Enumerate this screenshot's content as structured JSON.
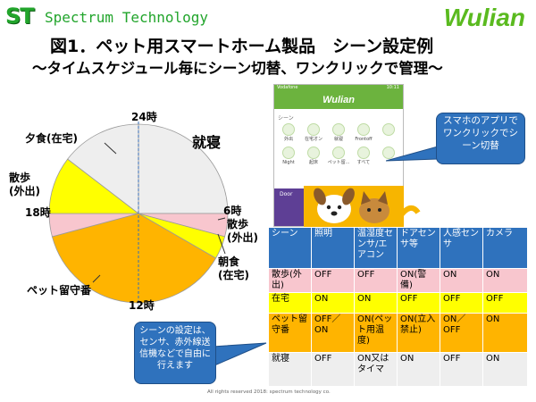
{
  "header": {
    "logo_left": "ST",
    "logo_left_text": "Spectrum Technology",
    "logo_right": "Wulian"
  },
  "title": {
    "line1": "図1．ペット用スマートホーム製品　シーン設定例",
    "line2": "～タイムスケジュール毎にシーン切替、ワンクリックで管理～"
  },
  "pie": {
    "labels": {
      "top": "24時",
      "right": "6時",
      "bottom": "12時",
      "left": "18時"
    },
    "segments": [
      {
        "name": "就寝",
        "lines": [
          "就寝"
        ],
        "start_hour": 0,
        "end_hour": 6,
        "color": "#eeeeee"
      },
      {
        "name": "散歩(外出)",
        "lines": [
          "散歩",
          "(外出)"
        ],
        "start_hour": 6,
        "end_hour": 7,
        "color": "#f8c6ce"
      },
      {
        "name": "朝食(在宅)",
        "lines": [
          "朝食",
          "(在宅)"
        ],
        "start_hour": 7,
        "end_hour": 8,
        "color": "#ffff00"
      },
      {
        "name": "ペット留守番",
        "lines": [
          "ペット留守番"
        ],
        "start_hour": 8,
        "end_hour": 17,
        "color": "#ffb400"
      },
      {
        "name": "散歩(外出)",
        "lines": [
          "散歩",
          "(外出)"
        ],
        "start_hour": 17,
        "end_hour": 18,
        "color": "#f8c6ce"
      },
      {
        "name": "夕食(在宅)",
        "lines": [
          "夕食(在宅)"
        ],
        "start_hour": 18,
        "end_hour": 20.5,
        "color": "#ffff00"
      },
      {
        "name": "就寝",
        "lines": [],
        "start_hour": 20.5,
        "end_hour": 24,
        "color": "#eeeeee"
      }
    ]
  },
  "phone": {
    "status_left": "Vodafone",
    "status_right": "10:11",
    "app_title": "Wulian",
    "section": "シーン",
    "icons": [
      {
        "label": "外出",
        "icon": "walk-icon"
      },
      {
        "label": "在宅オン",
        "icon": "home-icon"
      },
      {
        "label": "就寝",
        "icon": "moon-icon"
      },
      {
        "label": "Frontoff",
        "icon": "door-icon"
      },
      {
        "label": "",
        "icon": "alert-icon"
      },
      {
        "label": "Night",
        "icon": "night-icon"
      },
      {
        "label": "起床",
        "icon": "sun-icon"
      },
      {
        "label": "ペット留...",
        "icon": "pet-icon"
      },
      {
        "label": "すべて",
        "icon": "more-icon"
      },
      {
        "label": "",
        "icon": "blank-icon"
      }
    ],
    "image_label": "Door"
  },
  "callout_app": "スマホのアプリでワンクリックでシーン切替",
  "callout_settings": "シーンの設定は、センサ、赤外線送信機などで自由に行えます",
  "table": {
    "headers": [
      "シーン",
      "照明",
      "温湿度センサ/エアコン",
      "ドアセンサ等",
      "人感センサ",
      "カメラ"
    ],
    "rows": [
      [
        "散歩(外出)",
        "OFF",
        "OFF",
        "ON(警備)",
        "ON",
        "ON"
      ],
      [
        "在宅",
        "ON",
        "ON",
        "OFF",
        "OFF",
        "OFF"
      ],
      [
        "ペット留守番",
        "OFF／ON",
        "ON(ペット用温度)",
        "ON(立入禁止)",
        "ON／OFF",
        "ON"
      ],
      [
        "就寝",
        "OFF",
        "ON又はタイマ",
        "ON",
        "OFF",
        "ON"
      ]
    ]
  },
  "footer": "All rights reserved 2018: spectrum technology co."
}
